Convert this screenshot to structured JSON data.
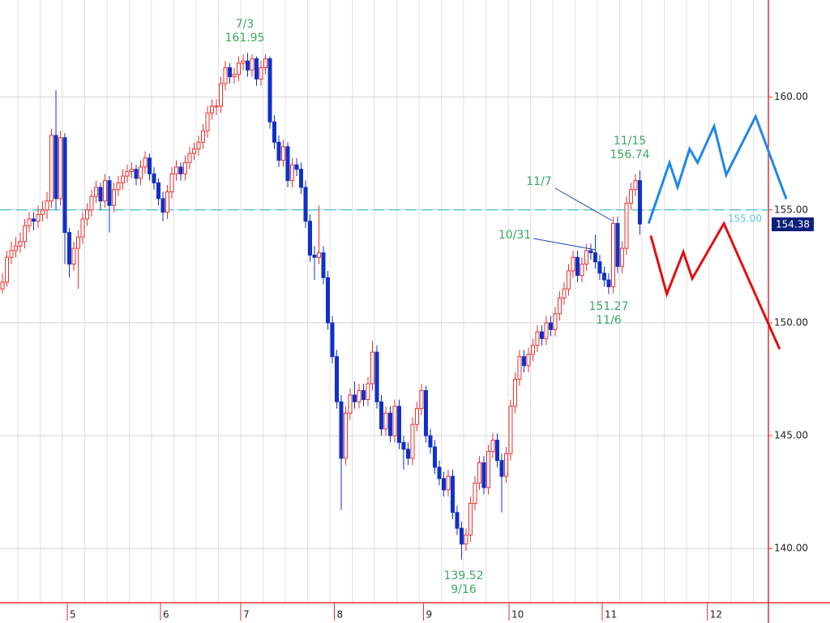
{
  "chart_data": {
    "type": "candlestick",
    "ylim": [
      137.6,
      164.3
    ],
    "yticks": [
      {
        "value": 140,
        "label": "140.00"
      },
      {
        "value": 145,
        "label": "145.00"
      },
      {
        "value": 150,
        "label": "150.00"
      },
      {
        "value": 155,
        "label": "155.00"
      },
      {
        "value": 160,
        "label": "160.00"
      }
    ],
    "xlim": [
      0,
      186.2
    ],
    "xticks": [
      {
        "value": 15.1,
        "label": "5"
      },
      {
        "value": 36.0,
        "label": "6"
      },
      {
        "value": 54.0,
        "label": "7"
      },
      {
        "value": 75.0,
        "label": "8"
      },
      {
        "value": 95.0,
        "label": "9"
      },
      {
        "value": 114.2,
        "label": "10"
      },
      {
        "value": 135.1,
        "label": "11"
      },
      {
        "value": 158.7,
        "label": "12"
      }
    ],
    "grid": true,
    "up_color": "#e8312f",
    "down_color": "#1030c8",
    "ohlc": [
      [
        151.5,
        152.2,
        151.3,
        151.8
      ],
      [
        151.8,
        153.2,
        151.6,
        152.9
      ],
      [
        152.9,
        153.6,
        152.6,
        153.2
      ],
      [
        153.2,
        153.8,
        152.9,
        153.4
      ],
      [
        153.4,
        154.0,
        153.1,
        153.6
      ],
      [
        153.6,
        154.6,
        153.3,
        154.3
      ],
      [
        154.3,
        154.9,
        154.0,
        154.6
      ],
      [
        154.6,
        154.9,
        154.1,
        154.5
      ],
      [
        154.5,
        155.2,
        154.2,
        154.8
      ],
      [
        154.8,
        155.4,
        154.5,
        155.0
      ],
      [
        155.0,
        155.8,
        154.6,
        155.4
      ],
      [
        155.4,
        158.6,
        155.1,
        158.3
      ],
      [
        158.3,
        160.3,
        155.0,
        155.5
      ],
      [
        155.5,
        158.5,
        155.2,
        158.2
      ],
      [
        158.2,
        158.4,
        152.6,
        154.0
      ],
      [
        154.0,
        154.2,
        152.0,
        152.6
      ],
      [
        152.6,
        153.6,
        152.3,
        153.3
      ],
      [
        153.3,
        154.1,
        151.5,
        153.8
      ],
      [
        153.8,
        154.9,
        153.5,
        154.6
      ],
      [
        154.6,
        155.3,
        154.3,
        155.0
      ],
      [
        155.0,
        155.9,
        154.7,
        155.6
      ],
      [
        155.6,
        156.3,
        155.3,
        156.0
      ],
      [
        156.0,
        156.2,
        155.0,
        155.4
      ],
      [
        155.4,
        156.6,
        155.1,
        156.3
      ],
      [
        156.3,
        156.5,
        154.0,
        155.2
      ],
      [
        155.2,
        156.2,
        154.9,
        155.9
      ],
      [
        155.9,
        156.5,
        155.6,
        156.2
      ],
      [
        156.2,
        156.8,
        155.9,
        156.5
      ],
      [
        156.5,
        157.0,
        156.2,
        156.7
      ],
      [
        156.7,
        157.1,
        156.4,
        156.8
      ],
      [
        156.8,
        157.0,
        156.1,
        156.4
      ],
      [
        156.4,
        157.2,
        156.1,
        156.9
      ],
      [
        156.9,
        157.6,
        156.6,
        157.3
      ],
      [
        157.3,
        157.5,
        156.3,
        156.6
      ],
      [
        156.6,
        156.9,
        155.9,
        156.2
      ],
      [
        156.2,
        156.4,
        155.2,
        155.5
      ],
      [
        155.5,
        155.8,
        154.5,
        154.9
      ],
      [
        154.9,
        156.1,
        154.6,
        155.8
      ],
      [
        155.8,
        156.9,
        155.5,
        156.6
      ],
      [
        156.6,
        157.2,
        156.3,
        156.9
      ],
      [
        156.9,
        157.1,
        156.3,
        156.6
      ],
      [
        156.6,
        157.4,
        156.3,
        157.1
      ],
      [
        157.1,
        157.8,
        156.8,
        157.5
      ],
      [
        157.5,
        158.0,
        157.2,
        157.7
      ],
      [
        157.7,
        158.3,
        157.4,
        158.0
      ],
      [
        158.0,
        158.8,
        157.7,
        158.5
      ],
      [
        158.5,
        159.6,
        158.2,
        159.3
      ],
      [
        159.3,
        159.9,
        159.0,
        159.6
      ],
      [
        159.6,
        159.9,
        159.2,
        159.6
      ],
      [
        159.6,
        160.9,
        159.3,
        160.6
      ],
      [
        160.6,
        161.6,
        160.3,
        161.3
      ],
      [
        161.3,
        161.5,
        160.6,
        160.9
      ],
      [
        160.9,
        161.3,
        160.6,
        161.0
      ],
      [
        161.0,
        161.8,
        160.7,
        161.5
      ],
      [
        161.5,
        161.9,
        161.2,
        161.6
      ],
      [
        161.6,
        161.95,
        160.9,
        161.2
      ],
      [
        161.2,
        161.9,
        160.9,
        161.7
      ],
      [
        161.7,
        161.8,
        160.5,
        160.8
      ],
      [
        160.8,
        161.6,
        160.5,
        161.3
      ],
      [
        161.3,
        161.9,
        161.0,
        161.7
      ],
      [
        161.7,
        161.8,
        158.6,
        158.9
      ],
      [
        158.9,
        159.2,
        157.7,
        158.0
      ],
      [
        158.0,
        158.3,
        156.9,
        157.2
      ],
      [
        157.2,
        158.1,
        156.9,
        157.8
      ],
      [
        157.8,
        158.0,
        156.0,
        156.3
      ],
      [
        156.3,
        157.3,
        156.0,
        157.0
      ],
      [
        157.0,
        157.3,
        156.5,
        156.8
      ],
      [
        156.8,
        157.1,
        155.7,
        156.0
      ],
      [
        156.0,
        156.3,
        154.2,
        154.5
      ],
      [
        154.5,
        154.8,
        152.7,
        153.0
      ],
      [
        153.0,
        153.4,
        151.9,
        152.9
      ],
      [
        152.9,
        155.2,
        152.6,
        153.1
      ],
      [
        153.1,
        153.4,
        151.7,
        152.0
      ],
      [
        152.0,
        152.3,
        149.7,
        150.0
      ],
      [
        150.0,
        150.3,
        148.2,
        148.5
      ],
      [
        148.5,
        148.8,
        146.2,
        146.5
      ],
      [
        146.5,
        146.8,
        141.7,
        144.0
      ],
      [
        144.0,
        146.3,
        143.7,
        146.0
      ],
      [
        146.0,
        147.1,
        145.7,
        146.8
      ],
      [
        146.8,
        147.4,
        146.2,
        146.5
      ],
      [
        146.5,
        147.3,
        146.2,
        147.0
      ],
      [
        147.0,
        147.3,
        146.3,
        146.6
      ],
      [
        146.6,
        147.6,
        146.3,
        147.3
      ],
      [
        147.3,
        149.2,
        147.0,
        148.7
      ],
      [
        148.7,
        149.0,
        146.2,
        146.5
      ],
      [
        146.5,
        146.8,
        145.0,
        145.3
      ],
      [
        145.3,
        146.3,
        145.0,
        146.0
      ],
      [
        146.0,
        146.3,
        144.7,
        145.0
      ],
      [
        145.0,
        146.6,
        144.7,
        146.3
      ],
      [
        146.3,
        146.6,
        144.4,
        144.7
      ],
      [
        144.7,
        145.0,
        143.5,
        144.4
      ],
      [
        144.4,
        144.7,
        143.7,
        144.0
      ],
      [
        144.0,
        145.8,
        143.7,
        145.5
      ],
      [
        145.5,
        146.5,
        145.2,
        146.2
      ],
      [
        146.2,
        147.3,
        145.9,
        147.0
      ],
      [
        147.0,
        147.2,
        144.7,
        145.0
      ],
      [
        145.0,
        145.3,
        144.2,
        144.5
      ],
      [
        144.5,
        144.8,
        143.3,
        143.6
      ],
      [
        143.6,
        143.9,
        142.8,
        143.1
      ],
      [
        143.1,
        143.4,
        142.3,
        142.6
      ],
      [
        142.6,
        143.5,
        142.3,
        143.2
      ],
      [
        143.2,
        143.5,
        141.3,
        141.6
      ],
      [
        141.6,
        141.9,
        140.6,
        140.9
      ],
      [
        140.9,
        141.2,
        139.52,
        140.2
      ],
      [
        140.2,
        140.9,
        139.9,
        140.6
      ],
      [
        140.6,
        142.3,
        140.3,
        142.0
      ],
      [
        142.0,
        143.2,
        141.7,
        142.9
      ],
      [
        142.9,
        144.1,
        142.6,
        143.8
      ],
      [
        143.8,
        144.1,
        142.4,
        142.7
      ],
      [
        142.7,
        144.6,
        142.4,
        144.3
      ],
      [
        144.3,
        145.1,
        144.0,
        144.8
      ],
      [
        144.8,
        145.1,
        143.6,
        143.9
      ],
      [
        143.9,
        144.2,
        141.6,
        143.2
      ],
      [
        143.2,
        144.5,
        142.9,
        144.2
      ],
      [
        144.2,
        146.6,
        143.9,
        146.3
      ],
      [
        146.3,
        147.8,
        146.0,
        147.5
      ],
      [
        147.5,
        148.8,
        147.2,
        148.5
      ],
      [
        148.5,
        148.8,
        147.8,
        148.1
      ],
      [
        148.1,
        148.9,
        147.8,
        148.6
      ],
      [
        148.6,
        149.3,
        148.3,
        149.0
      ],
      [
        149.0,
        149.9,
        148.7,
        149.6
      ],
      [
        149.6,
        149.9,
        149.0,
        149.3
      ],
      [
        149.3,
        150.3,
        149.0,
        150.0
      ],
      [
        150.0,
        150.3,
        149.4,
        149.7
      ],
      [
        149.7,
        150.7,
        149.4,
        150.4
      ],
      [
        150.4,
        151.4,
        150.1,
        151.1
      ],
      [
        151.1,
        151.8,
        150.8,
        151.5
      ],
      [
        151.5,
        152.6,
        151.2,
        152.3
      ],
      [
        152.3,
        153.2,
        152.0,
        152.9
      ],
      [
        152.9,
        153.2,
        151.8,
        152.1
      ],
      [
        152.1,
        152.9,
        151.8,
        152.6
      ],
      [
        152.6,
        153.5,
        152.3,
        153.2
      ],
      [
        153.2,
        153.5,
        152.8,
        153.1
      ],
      [
        153.1,
        153.9,
        152.4,
        152.7
      ],
      [
        152.7,
        153.0,
        151.9,
        152.2
      ],
      [
        152.2,
        152.5,
        151.6,
        151.9
      ],
      [
        151.9,
        152.2,
        151.27,
        151.6
      ],
      [
        151.6,
        154.7,
        151.3,
        154.4
      ],
      [
        154.4,
        154.7,
        152.2,
        152.5
      ],
      [
        152.5,
        153.6,
        152.2,
        153.3
      ],
      [
        153.3,
        155.6,
        153.0,
        155.3
      ],
      [
        155.3,
        156.2,
        155.0,
        155.9
      ],
      [
        155.9,
        156.6,
        155.6,
        156.3
      ],
      [
        156.3,
        156.74,
        153.9,
        154.38
      ]
    ],
    "forecast": [
      {
        "color": "#1e88e5",
        "x": [
          145.5,
          150.2,
          152.0,
          154.7,
          156.5,
          160.2,
          162.9,
          169.5,
          176.4
        ],
        "values": [
          154.4,
          157.09,
          156.01,
          157.7,
          157.09,
          158.71,
          156.55,
          159.14,
          155.48
        ]
      },
      {
        "color": "#e01010",
        "x": [
          146.0,
          149.6,
          153.3,
          155.3,
          162.4,
          174.9
        ],
        "values": [
          153.86,
          151.27,
          153.14,
          151.96,
          154.4,
          148.83
        ]
      }
    ],
    "hline": {
      "value": 155,
      "label": "155.00",
      "color": "#5bc8d8"
    },
    "last_price": {
      "value": 154.38,
      "label": "154.38"
    },
    "annotations": [
      {
        "lines": [
          "7/3",
          "161.95"
        ]
      },
      {
        "lines": [
          "11/15",
          "156.74"
        ]
      },
      {
        "lines": [
          "11/7"
        ]
      },
      {
        "lines": [
          "10/31"
        ]
      },
      {
        "lines": [
          "151.27",
          "11/6"
        ]
      },
      {
        "lines": [
          "139.52",
          "9/16"
        ]
      }
    ]
  }
}
